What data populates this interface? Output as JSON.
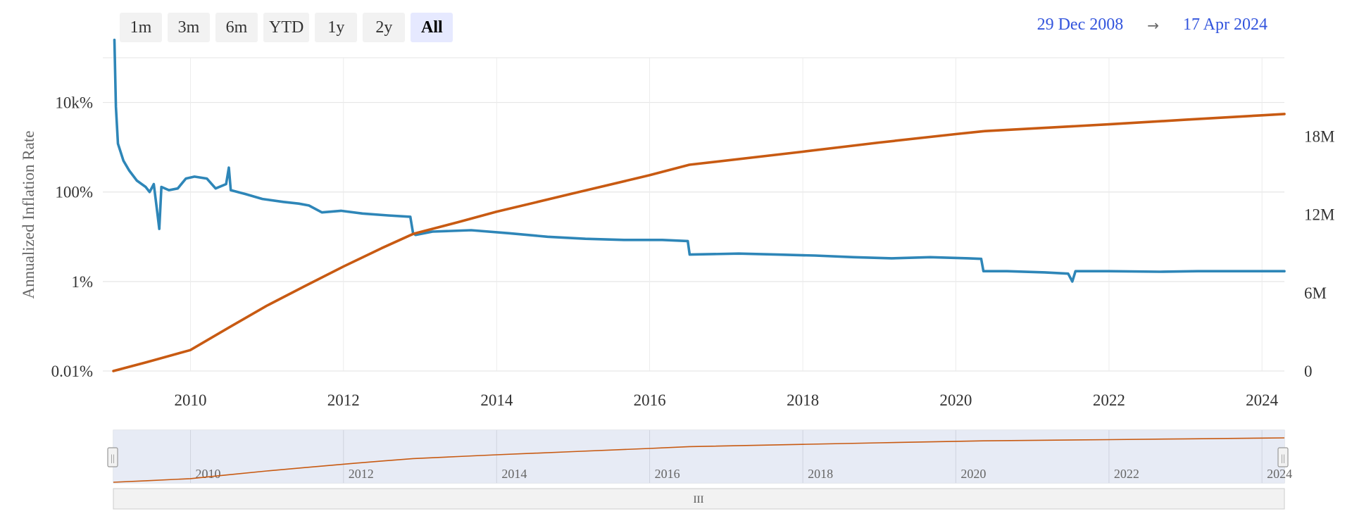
{
  "range_selector": {
    "buttons": [
      {
        "label": "1m",
        "selected": false
      },
      {
        "label": "3m",
        "selected": false
      },
      {
        "label": "6m",
        "selected": false
      },
      {
        "label": "YTD",
        "selected": false
      },
      {
        "label": "1y",
        "selected": false
      },
      {
        "label": "2y",
        "selected": false
      },
      {
        "label": "All",
        "selected": true
      }
    ],
    "from_date": "29 Dec 2008",
    "arrow": "→",
    "to_date": "17 Apr 2024"
  },
  "navigator": {
    "scrollbar_grip": "III",
    "handle_grip": "||"
  },
  "chart_data": {
    "type": "line",
    "x_range": [
      "2008-12-29",
      "2024-04-17"
    ],
    "x_ticks": [
      "2010",
      "2012",
      "2014",
      "2016",
      "2018",
      "2020",
      "2022",
      "2024"
    ],
    "y_left": {
      "label": "Annualized Inflation Rate",
      "scale": "log",
      "ticks": [
        "0.01%",
        "1%",
        "100%",
        "10k%"
      ],
      "tick_values": [
        0.01,
        1,
        100,
        10000
      ],
      "range": [
        0.01,
        100000
      ]
    },
    "y_right": {
      "label": "",
      "scale": "linear",
      "ticks": [
        "0",
        "6M",
        "12M",
        "18M"
      ],
      "tick_values": [
        0,
        6000000,
        12000000,
        18000000
      ],
      "range": [
        0,
        24000000
      ]
    },
    "grid": true,
    "colors": {
      "inflation": "#2e86b8",
      "supply": "#c85a12"
    },
    "series": [
      {
        "axis": "left",
        "color": "#2e86b8",
        "points": [
          [
            "2009-01-03",
            250000
          ],
          [
            "2009-01-10",
            8000
          ],
          [
            "2009-01-20",
            1200
          ],
          [
            "2009-02-15",
            500
          ],
          [
            "2009-03-15",
            300
          ],
          [
            "2009-04-20",
            180
          ],
          [
            "2009-06-01",
            130
          ],
          [
            "2009-06-20",
            100
          ],
          [
            "2009-07-10",
            150
          ],
          [
            "2009-07-25",
            40
          ],
          [
            "2009-08-05",
            15
          ],
          [
            "2009-08-15",
            130
          ],
          [
            "2009-09-20",
            110
          ],
          [
            "2009-11-01",
            120
          ],
          [
            "2009-12-10",
            200
          ],
          [
            "2010-01-20",
            220
          ],
          [
            "2010-03-20",
            200
          ],
          [
            "2010-05-01",
            120
          ],
          [
            "2010-06-20",
            150
          ],
          [
            "2010-07-03",
            350
          ],
          [
            "2010-07-12",
            110
          ],
          [
            "2010-09-20",
            90
          ],
          [
            "2010-12-10",
            70
          ],
          [
            "2011-03-20",
            60
          ],
          [
            "2011-06-01",
            55
          ],
          [
            "2011-07-20",
            50
          ],
          [
            "2011-09-20",
            35
          ],
          [
            "2011-12-20",
            38
          ],
          [
            "2012-04-01",
            33
          ],
          [
            "2012-08-01",
            30
          ],
          [
            "2012-11-15",
            28
          ],
          [
            "2012-11-28",
            12
          ],
          [
            "2012-12-10",
            11
          ],
          [
            "2013-03-01",
            13
          ],
          [
            "2013-09-01",
            14
          ],
          [
            "2014-03-01",
            12
          ],
          [
            "2014-09-01",
            10
          ],
          [
            "2015-03-01",
            9
          ],
          [
            "2015-09-01",
            8.5
          ],
          [
            "2016-03-01",
            8.5
          ],
          [
            "2016-07-01",
            8
          ],
          [
            "2016-07-10",
            4
          ],
          [
            "2017-03-01",
            4.2
          ],
          [
            "2017-09-01",
            4
          ],
          [
            "2018-03-01",
            3.8
          ],
          [
            "2018-09-01",
            3.5
          ],
          [
            "2019-03-01",
            3.3
          ],
          [
            "2019-09-01",
            3.5
          ],
          [
            "2020-03-01",
            3.3
          ],
          [
            "2020-05-01",
            3.2
          ],
          [
            "2020-05-12",
            1.7
          ],
          [
            "2020-09-01",
            1.7
          ],
          [
            "2021-03-01",
            1.6
          ],
          [
            "2021-06-20",
            1.5
          ],
          [
            "2021-07-10",
            1.0
          ],
          [
            "2021-07-25",
            1.7
          ],
          [
            "2022-01-01",
            1.7
          ],
          [
            "2022-09-01",
            1.65
          ],
          [
            "2023-03-01",
            1.7
          ],
          [
            "2023-09-01",
            1.7
          ],
          [
            "2024-04-17",
            1.7
          ]
        ]
      },
      {
        "axis": "right",
        "color": "#c85a12",
        "points": [
          [
            "2008-12-29",
            0
          ],
          [
            "2009-06-01",
            650000
          ],
          [
            "2009-12-31",
            1600000
          ],
          [
            "2010-06-30",
            3300000
          ],
          [
            "2010-12-31",
            5000000
          ],
          [
            "2011-06-30",
            6500000
          ],
          [
            "2011-12-31",
            8000000
          ],
          [
            "2012-06-30",
            9400000
          ],
          [
            "2012-11-28",
            10500000
          ],
          [
            "2013-06-30",
            11400000
          ],
          [
            "2013-12-31",
            12200000
          ],
          [
            "2014-12-31",
            13600000
          ],
          [
            "2015-12-31",
            15000000
          ],
          [
            "2016-07-09",
            15800000
          ],
          [
            "2017-12-31",
            16800000
          ],
          [
            "2018-12-31",
            17500000
          ],
          [
            "2019-12-31",
            18150000
          ],
          [
            "2020-05-11",
            18370000
          ],
          [
            "2021-12-31",
            18900000
          ],
          [
            "2022-12-31",
            19250000
          ],
          [
            "2023-12-31",
            19590000
          ],
          [
            "2024-04-17",
            19690000
          ]
        ]
      }
    ]
  }
}
